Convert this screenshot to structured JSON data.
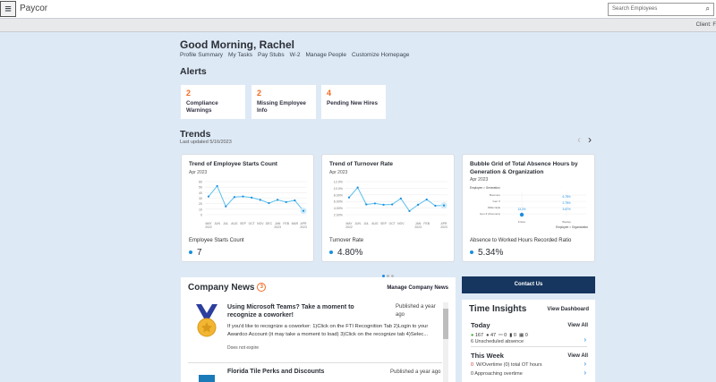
{
  "header": {
    "logo": "Paycor",
    "search_placeholder": "Search Employees",
    "client_label": "Client: F"
  },
  "greeting": "Good Morning, Rachel",
  "quick_links": [
    "Profile Summary",
    "My Tasks",
    "Pay Stubs",
    "W-2",
    "Manage People",
    "Customize Homepage"
  ],
  "alerts": {
    "title": "Alerts",
    "items": [
      {
        "count": "2",
        "label": "Compliance Warnings"
      },
      {
        "count": "2",
        "label": "Missing Employee Info"
      },
      {
        "count": "4",
        "label": "Pending New Hires"
      }
    ]
  },
  "trends": {
    "title": "Trends",
    "updated": "Last updated 5/16/2023"
  },
  "colors": {
    "accent": "#1a8ee0",
    "orange": "#f26a21",
    "navy": "#16365f",
    "line": "#5bc0ee"
  },
  "chart_data": [
    {
      "type": "line",
      "title": "Trend of Employee Starts Count",
      "subtitle": "Apr 2023",
      "categories": [
        "MAY 2022",
        "JUN",
        "JUL",
        "AUG",
        "SEP",
        "OCT",
        "NOV",
        "DEC",
        "JAN 2023",
        "FEB",
        "MAR",
        "APR 2023"
      ],
      "values": [
        33,
        52,
        15,
        32,
        33,
        31,
        27,
        21,
        27,
        23,
        26,
        7
      ],
      "yticks": [
        "60",
        "50",
        "40",
        "30",
        "20",
        "10",
        "0"
      ],
      "ylim": [
        0,
        60
      ],
      "metric_label": "Employee Starts Count",
      "metric_value": "7"
    },
    {
      "type": "line",
      "title": "Trend of Turnover Rate",
      "subtitle": "Apr 2023",
      "categories": [
        "MAY 2022",
        "JUN",
        "JUL",
        "AUG",
        "SEP",
        "OCT",
        "NOV",
        "",
        "JAN 2023",
        "FEB",
        "",
        "APR 2023"
      ],
      "values": [
        7.2,
        10.2,
        5.1,
        5.4,
        5.0,
        5.1,
        6.9,
        3.1,
        5.0,
        6.6,
        4.7,
        4.8
      ],
      "yticks": [
        "12.0%",
        "10.0%",
        "8.00%",
        "6.00%",
        "4.00%",
        "2.00%"
      ],
      "ylim": [
        2,
        12
      ],
      "metric_label": "Turnover Rate",
      "metric_value": "4.80%"
    },
    {
      "type": "scatter",
      "title": "Bubble Grid of Total Absence Hours by Generation & Organization",
      "subtitle": "Apr 2023",
      "ylabel": "Employee > Generation",
      "xlabel": "Employee > Organization",
      "rows": [
        "Boomers",
        "Gen X",
        "Millennials",
        "Gen Z (Zoomers)"
      ],
      "cols": [
        "Frisco",
        "Wesley"
      ],
      "labels": [
        "13.2%",
        "6.75%",
        "2.75%",
        "3.67%"
      ],
      "metric_label": "Absence to Worked Hours Recorded Ratio",
      "metric_value": "5.34%"
    }
  ],
  "news": {
    "title": "Company News",
    "count": "3",
    "manage": "Manage Company News",
    "items": [
      {
        "title": "Using Microsoft Teams? Take a moment to recognize a coworker!",
        "published": "Published a year ago",
        "body": "If you'd like to recognize a coworker: 1)Click on the FTI Recognition Tab 2)Login to your Awardco Account (it may take a moment to load) 3)Click on the recognize tab 4)Selec...",
        "expiry": "Does not expire"
      },
      {
        "title": "Florida Tile Perks and Discounts",
        "published": "Published a year ago"
      }
    ]
  },
  "contact": "Contact Us",
  "time_insights": {
    "title": "Time Insights",
    "dashboard": "View Dashboard",
    "today": {
      "title": "Today",
      "view_all": "View All",
      "counts": [
        "167",
        "47",
        "0",
        "0",
        "0"
      ],
      "unscheduled": "6  Unscheduled absence"
    },
    "week": {
      "title": "This Week",
      "view_all": "View All",
      "overtime_count": "0",
      "overtime": "W/Overtime (0) total OT hours",
      "approaching": "0  Approaching overtime"
    }
  }
}
